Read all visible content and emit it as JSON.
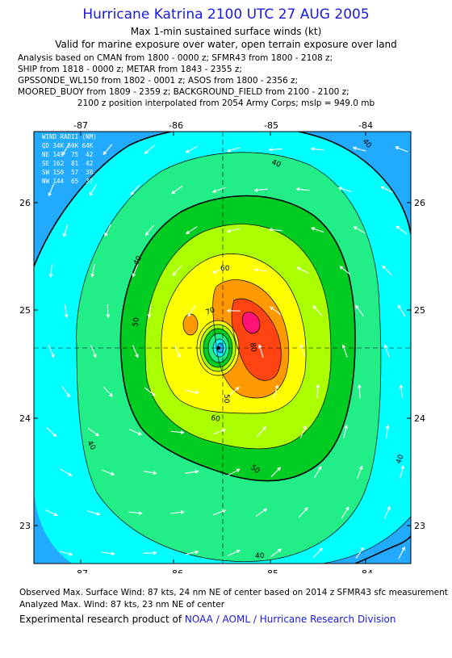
{
  "header": {
    "title": "Hurricane Katrina 2100 UTC 27 AUG 2005",
    "subtitle1": "Max 1-min sustained surface winds (kt)",
    "subtitle2": "Valid for marine exposure over water, open terrain exposure over land"
  },
  "analysis_lines": [
    "Analysis based on  CMAN from 1800 - 0000 z;  SFMR43 from 1800 - 2108 z;",
    "SHIP from 1818 - 0000 z;  METAR from 1843 - 2355 z;",
    "GPSSONDE_WL150 from 1802 - 0001 z;  ASOS from 1800 - 2356 z;",
    "MOORED_BUOY from 1809 - 2359 z;  BACKGROUND_FIELD from 2100 - 2100 z;",
    "2100 z position interpolated from 2054 Army Corps; mslp = 949.0 mb"
  ],
  "map": {
    "lon_ticks": [
      "-87",
      "-86",
      "-85",
      "-84"
    ],
    "lat_ticks": [
      "26",
      "25",
      "24",
      "23"
    ],
    "lon_range": [
      -87.55,
      -83.55
    ],
    "lat_range": [
      22.62,
      26.62
    ],
    "center": {
      "lon": -85.5,
      "lat": 24.65
    },
    "contour_labels": [
      "40",
      "50",
      "60",
      "40",
      "50",
      "60",
      "70",
      "80",
      "40",
      "40",
      "40",
      "50",
      "40"
    ],
    "wind_radii": {
      "title": "WIND RADII (NM)",
      "rows": [
        "QD 34K 50K 64K",
        "NE 149  75  42",
        "SE 162  81  42",
        "SW 150  57  38",
        "NW 144  65  37"
      ]
    },
    "colors": {
      "lt30": "#22aaff",
      "c30": "#00ffff",
      "c40": "#22ee88",
      "c50": "#00cc22",
      "c60": "#aaff00",
      "c70": "#ffff00",
      "c80": "#ff9900",
      "c90": "#ff4411",
      "c100": "#ff1177"
    }
  },
  "footer": {
    "line1": "Observed Max. Surface Wind: 87 kts, 24 nm NE of center based on 2014 z SFMR43 sfc measurement",
    "line2": "Analyzed Max. Wind: 87 kts, 23 nm NE of center",
    "credit_prefix": "Experimental research product of ",
    "credit_org": "NOAA / AOML / Hurricane Research Division"
  }
}
